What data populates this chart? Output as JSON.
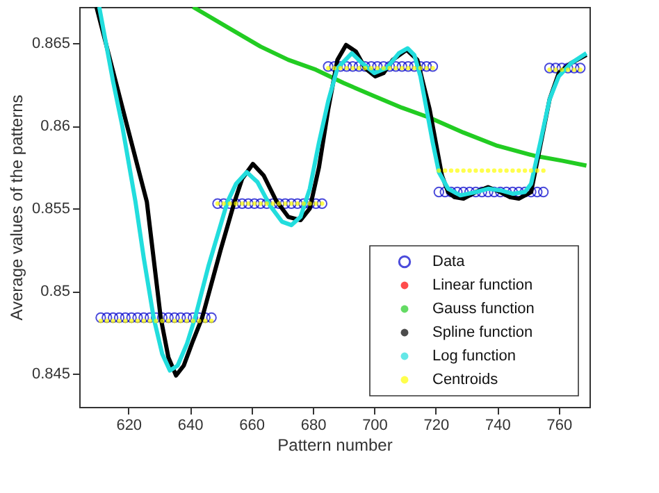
{
  "chart_data": {
    "type": "line",
    "xlabel": "Pattern number",
    "ylabel": "Average values of the patterns",
    "xlim": [
      604,
      770
    ],
    "ylim": [
      0.843,
      0.8672
    ],
    "xticks": [
      620,
      640,
      660,
      680,
      700,
      720,
      740,
      760
    ],
    "yticks": [
      0.845,
      0.85,
      0.855,
      0.86,
      0.865
    ],
    "grid": false,
    "legend": "bottom right",
    "line_style": "solid",
    "series": [
      {
        "name": "Data",
        "type": "scatter",
        "marker": "circle",
        "color": "#0000cc",
        "x": [
          611,
          613,
          615,
          617,
          619,
          621,
          623,
          625,
          627,
          629,
          631,
          633,
          635,
          637,
          639,
          641,
          643,
          645,
          647,
          649,
          651,
          653,
          655,
          657,
          659,
          661,
          663,
          665,
          667,
          669,
          671,
          673,
          675,
          677,
          679,
          681,
          683,
          685,
          687,
          689,
          691,
          693,
          695,
          697,
          699,
          701,
          703,
          705,
          707,
          709,
          711,
          713,
          715,
          717,
          719,
          721,
          723,
          725,
          727,
          729,
          731,
          733,
          735,
          737,
          739,
          741,
          743,
          745,
          747,
          749,
          751,
          753,
          755,
          757,
          759,
          761,
          763,
          765,
          767
        ],
        "values": [
          0.8484,
          0.8484,
          0.8484,
          0.8484,
          0.8484,
          0.8484,
          0.8484,
          0.8484,
          0.8484,
          0.8484,
          0.8484,
          0.8484,
          0.8484,
          0.8484,
          0.8484,
          0.8484,
          0.8484,
          0.8484,
          0.8484,
          0.8553,
          0.8553,
          0.8553,
          0.8553,
          0.8553,
          0.8553,
          0.8553,
          0.8553,
          0.8553,
          0.8553,
          0.8553,
          0.8553,
          0.8553,
          0.8553,
          0.8553,
          0.8553,
          0.8553,
          0.8553,
          0.8636,
          0.8636,
          0.8636,
          0.8636,
          0.8636,
          0.8636,
          0.8636,
          0.8636,
          0.8636,
          0.8636,
          0.8636,
          0.8636,
          0.8636,
          0.8636,
          0.8636,
          0.8636,
          0.8636,
          0.8636,
          0.856,
          0.856,
          0.856,
          0.856,
          0.856,
          0.856,
          0.856,
          0.856,
          0.856,
          0.856,
          0.856,
          0.856,
          0.856,
          0.856,
          0.856,
          0.856,
          0.856,
          0.856,
          0.8635,
          0.8635,
          0.8635,
          0.8635,
          0.8635,
          0.8635
        ]
      },
      {
        "name": "Linear function",
        "type": "line",
        "color": "#ff0000"
      },
      {
        "name": "Gauss function",
        "type": "line",
        "color": "#22cc22",
        "x": [
          641,
          652,
          663,
          672,
          681,
          690,
          700,
          709,
          718,
          729,
          740,
          752,
          761,
          769
        ],
        "values": [
          0.8672,
          0.866,
          0.8648,
          0.864,
          0.8634,
          0.8626,
          0.8618,
          0.8611,
          0.8605,
          0.8596,
          0.8588,
          0.8582,
          0.8579,
          0.8576
        ]
      },
      {
        "name": "Spline function",
        "type": "line",
        "color": "#000000",
        "x": [
          609.6,
          615,
          620,
          626,
          630.5,
          633,
          635.5,
          638,
          641,
          644,
          650,
          654.5,
          657,
          660.5,
          664,
          668,
          672,
          676,
          679,
          682,
          685,
          688,
          690.8,
          694,
          697,
          700.3,
          703,
          706,
          710.5,
          714,
          716,
          718,
          720,
          722,
          724,
          726,
          729,
          733,
          737,
          741,
          744,
          747,
          751,
          754,
          757,
          760,
          764,
          769
        ],
        "values": [
          0.8672,
          0.8633,
          0.8597,
          0.8554,
          0.8484,
          0.846,
          0.8449,
          0.8455,
          0.847,
          0.8484,
          0.8525,
          0.8554,
          0.8568,
          0.8577,
          0.857,
          0.8555,
          0.8545,
          0.8543,
          0.855,
          0.8575,
          0.861,
          0.864,
          0.8649,
          0.8645,
          0.8635,
          0.863,
          0.8632,
          0.864,
          0.8646,
          0.864,
          0.8625,
          0.861,
          0.859,
          0.857,
          0.856,
          0.8557,
          0.8556,
          0.856,
          0.8563,
          0.856,
          0.8557,
          0.8556,
          0.856,
          0.8588,
          0.8616,
          0.8632,
          0.8638,
          0.8643
        ]
      },
      {
        "name": "Log function",
        "type": "line",
        "color": "#22dddd",
        "x": [
          610.5,
          615,
          618,
          622.3,
          625,
          628.2,
          631,
          633.5,
          636,
          639,
          641.7,
          646,
          652.2,
          655,
          658.5,
          662,
          666,
          670,
          673,
          676,
          679,
          682,
          685,
          688,
          692.7,
          696,
          700,
          704,
          708,
          710.8,
          713,
          715,
          717,
          719,
          721,
          724,
          728,
          733,
          737,
          741,
          745,
          749,
          751,
          754,
          757,
          760,
          764,
          769
        ],
        "values": [
          0.8672,
          0.8627,
          0.86,
          0.8554,
          0.852,
          0.8484,
          0.8462,
          0.8452,
          0.8455,
          0.8468,
          0.8484,
          0.8515,
          0.8554,
          0.8565,
          0.8572,
          0.8566,
          0.8552,
          0.8542,
          0.854,
          0.8545,
          0.8562,
          0.859,
          0.8615,
          0.8635,
          0.8644,
          0.8638,
          0.8632,
          0.8635,
          0.8644,
          0.8647,
          0.8643,
          0.863,
          0.861,
          0.859,
          0.8572,
          0.8562,
          0.8558,
          0.856,
          0.8562,
          0.8561,
          0.8559,
          0.856,
          0.8565,
          0.859,
          0.8616,
          0.863,
          0.8638,
          0.8644
        ]
      },
      {
        "name": "Centroids",
        "type": "scatter",
        "marker": "circle",
        "color": "#ffff00",
        "x": [
          611,
          613,
          615,
          617,
          619,
          621,
          623,
          625,
          627,
          629,
          631,
          633,
          635,
          637,
          639,
          641,
          643,
          645,
          647,
          649,
          651,
          653,
          655,
          657,
          659,
          661,
          663,
          665,
          667,
          669,
          671,
          673,
          675,
          677,
          679,
          681,
          683,
          685,
          687,
          689,
          691,
          693,
          695,
          697,
          699,
          701,
          703,
          705,
          707,
          709,
          711,
          713,
          715,
          717,
          719,
          721,
          723,
          725,
          727,
          729,
          731,
          733,
          735,
          737,
          739,
          741,
          743,
          745,
          747,
          749,
          751,
          753,
          755,
          757,
          759,
          761,
          763,
          765,
          767
        ],
        "values": [
          0.8482,
          0.8482,
          0.8482,
          0.8482,
          0.8482,
          0.8482,
          0.8482,
          0.8482,
          0.8482,
          0.8482,
          0.8482,
          0.8482,
          0.8482,
          0.8482,
          0.8482,
          0.8482,
          0.8482,
          0.8482,
          0.8482,
          0.8553,
          0.8553,
          0.8553,
          0.8553,
          0.8553,
          0.8553,
          0.8553,
          0.8553,
          0.8553,
          0.8553,
          0.8553,
          0.8553,
          0.8553,
          0.8553,
          0.8553,
          0.8553,
          0.8553,
          0.8553,
          0.8635,
          0.8635,
          0.8635,
          0.8635,
          0.8635,
          0.8635,
          0.8635,
          0.8635,
          0.8635,
          0.8635,
          0.8635,
          0.8635,
          0.8635,
          0.8635,
          0.8635,
          0.8635,
          0.8635,
          0.8635,
          0.8573,
          0.8573,
          0.8573,
          0.8573,
          0.8573,
          0.8573,
          0.8573,
          0.8573,
          0.8573,
          0.8573,
          0.8573,
          0.8573,
          0.8573,
          0.8573,
          0.8573,
          0.8573,
          0.8573,
          0.8573,
          0.8634,
          0.8634,
          0.8634,
          0.8634,
          0.8634,
          0.8634
        ]
      }
    ]
  }
}
